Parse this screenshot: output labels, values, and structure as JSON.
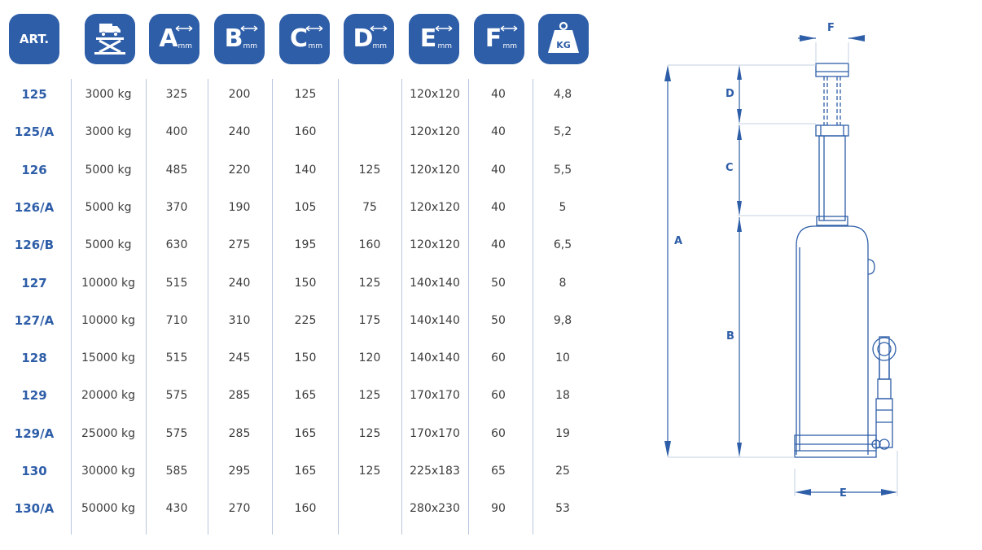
{
  "headers": {
    "art": "ART.",
    "capacity_icon": "truck-lift-icon",
    "a": {
      "letter": "A",
      "unit": "mm"
    },
    "b": {
      "letter": "B",
      "unit": "mm"
    },
    "c": {
      "letter": "C",
      "unit": "mm"
    },
    "d": {
      "letter": "D",
      "unit": "mm"
    },
    "e": {
      "letter": "E",
      "unit": "mm"
    },
    "f": {
      "letter": "F",
      "unit": "mm"
    },
    "kg": "KG"
  },
  "rows": [
    [
      "125",
      "3000 kg",
      "325",
      "200",
      "125",
      "",
      "120x120",
      "40",
      "4,8"
    ],
    [
      "125/A",
      "3000 kg",
      "400",
      "240",
      "160",
      "",
      "120x120",
      "40",
      "5,2"
    ],
    [
      "126",
      "5000 kg",
      "485",
      "220",
      "140",
      "125",
      "120x120",
      "40",
      "5,5"
    ],
    [
      "126/A",
      "5000 kg",
      "370",
      "190",
      "105",
      "75",
      "120x120",
      "40",
      "5"
    ],
    [
      "126/B",
      "5000 kg",
      "630",
      "275",
      "195",
      "160",
      "120x120",
      "40",
      "6,5"
    ],
    [
      "127",
      "10000 kg",
      "515",
      "240",
      "150",
      "125",
      "140x140",
      "50",
      "8"
    ],
    [
      "127/A",
      "10000 kg",
      "710",
      "310",
      "225",
      "175",
      "140x140",
      "50",
      "9,8"
    ],
    [
      "128",
      "15000 kg",
      "515",
      "245",
      "150",
      "120",
      "140x140",
      "60",
      "10"
    ],
    [
      "129",
      "20000 kg",
      "575",
      "285",
      "165",
      "125",
      "170x170",
      "60",
      "18"
    ],
    [
      "129/A",
      "25000 kg",
      "575",
      "285",
      "165",
      "125",
      "170x170",
      "60",
      "19"
    ],
    [
      "130",
      "30000 kg",
      "585",
      "295",
      "165",
      "125",
      "225x183",
      "65",
      "25"
    ],
    [
      "130/A",
      "50000 kg",
      "430",
      "270",
      "160",
      "",
      "280x230",
      "90",
      "53"
    ]
  ],
  "drawing": {
    "labels": {
      "a": "A",
      "b": "B",
      "c": "C",
      "d": "D",
      "e": "E",
      "f": "F"
    },
    "line_color": "#2e5ea8"
  },
  "colors": {
    "accent": "#2e5ea8",
    "text": "#3d3d3d",
    "divider": "#b9c6de"
  }
}
